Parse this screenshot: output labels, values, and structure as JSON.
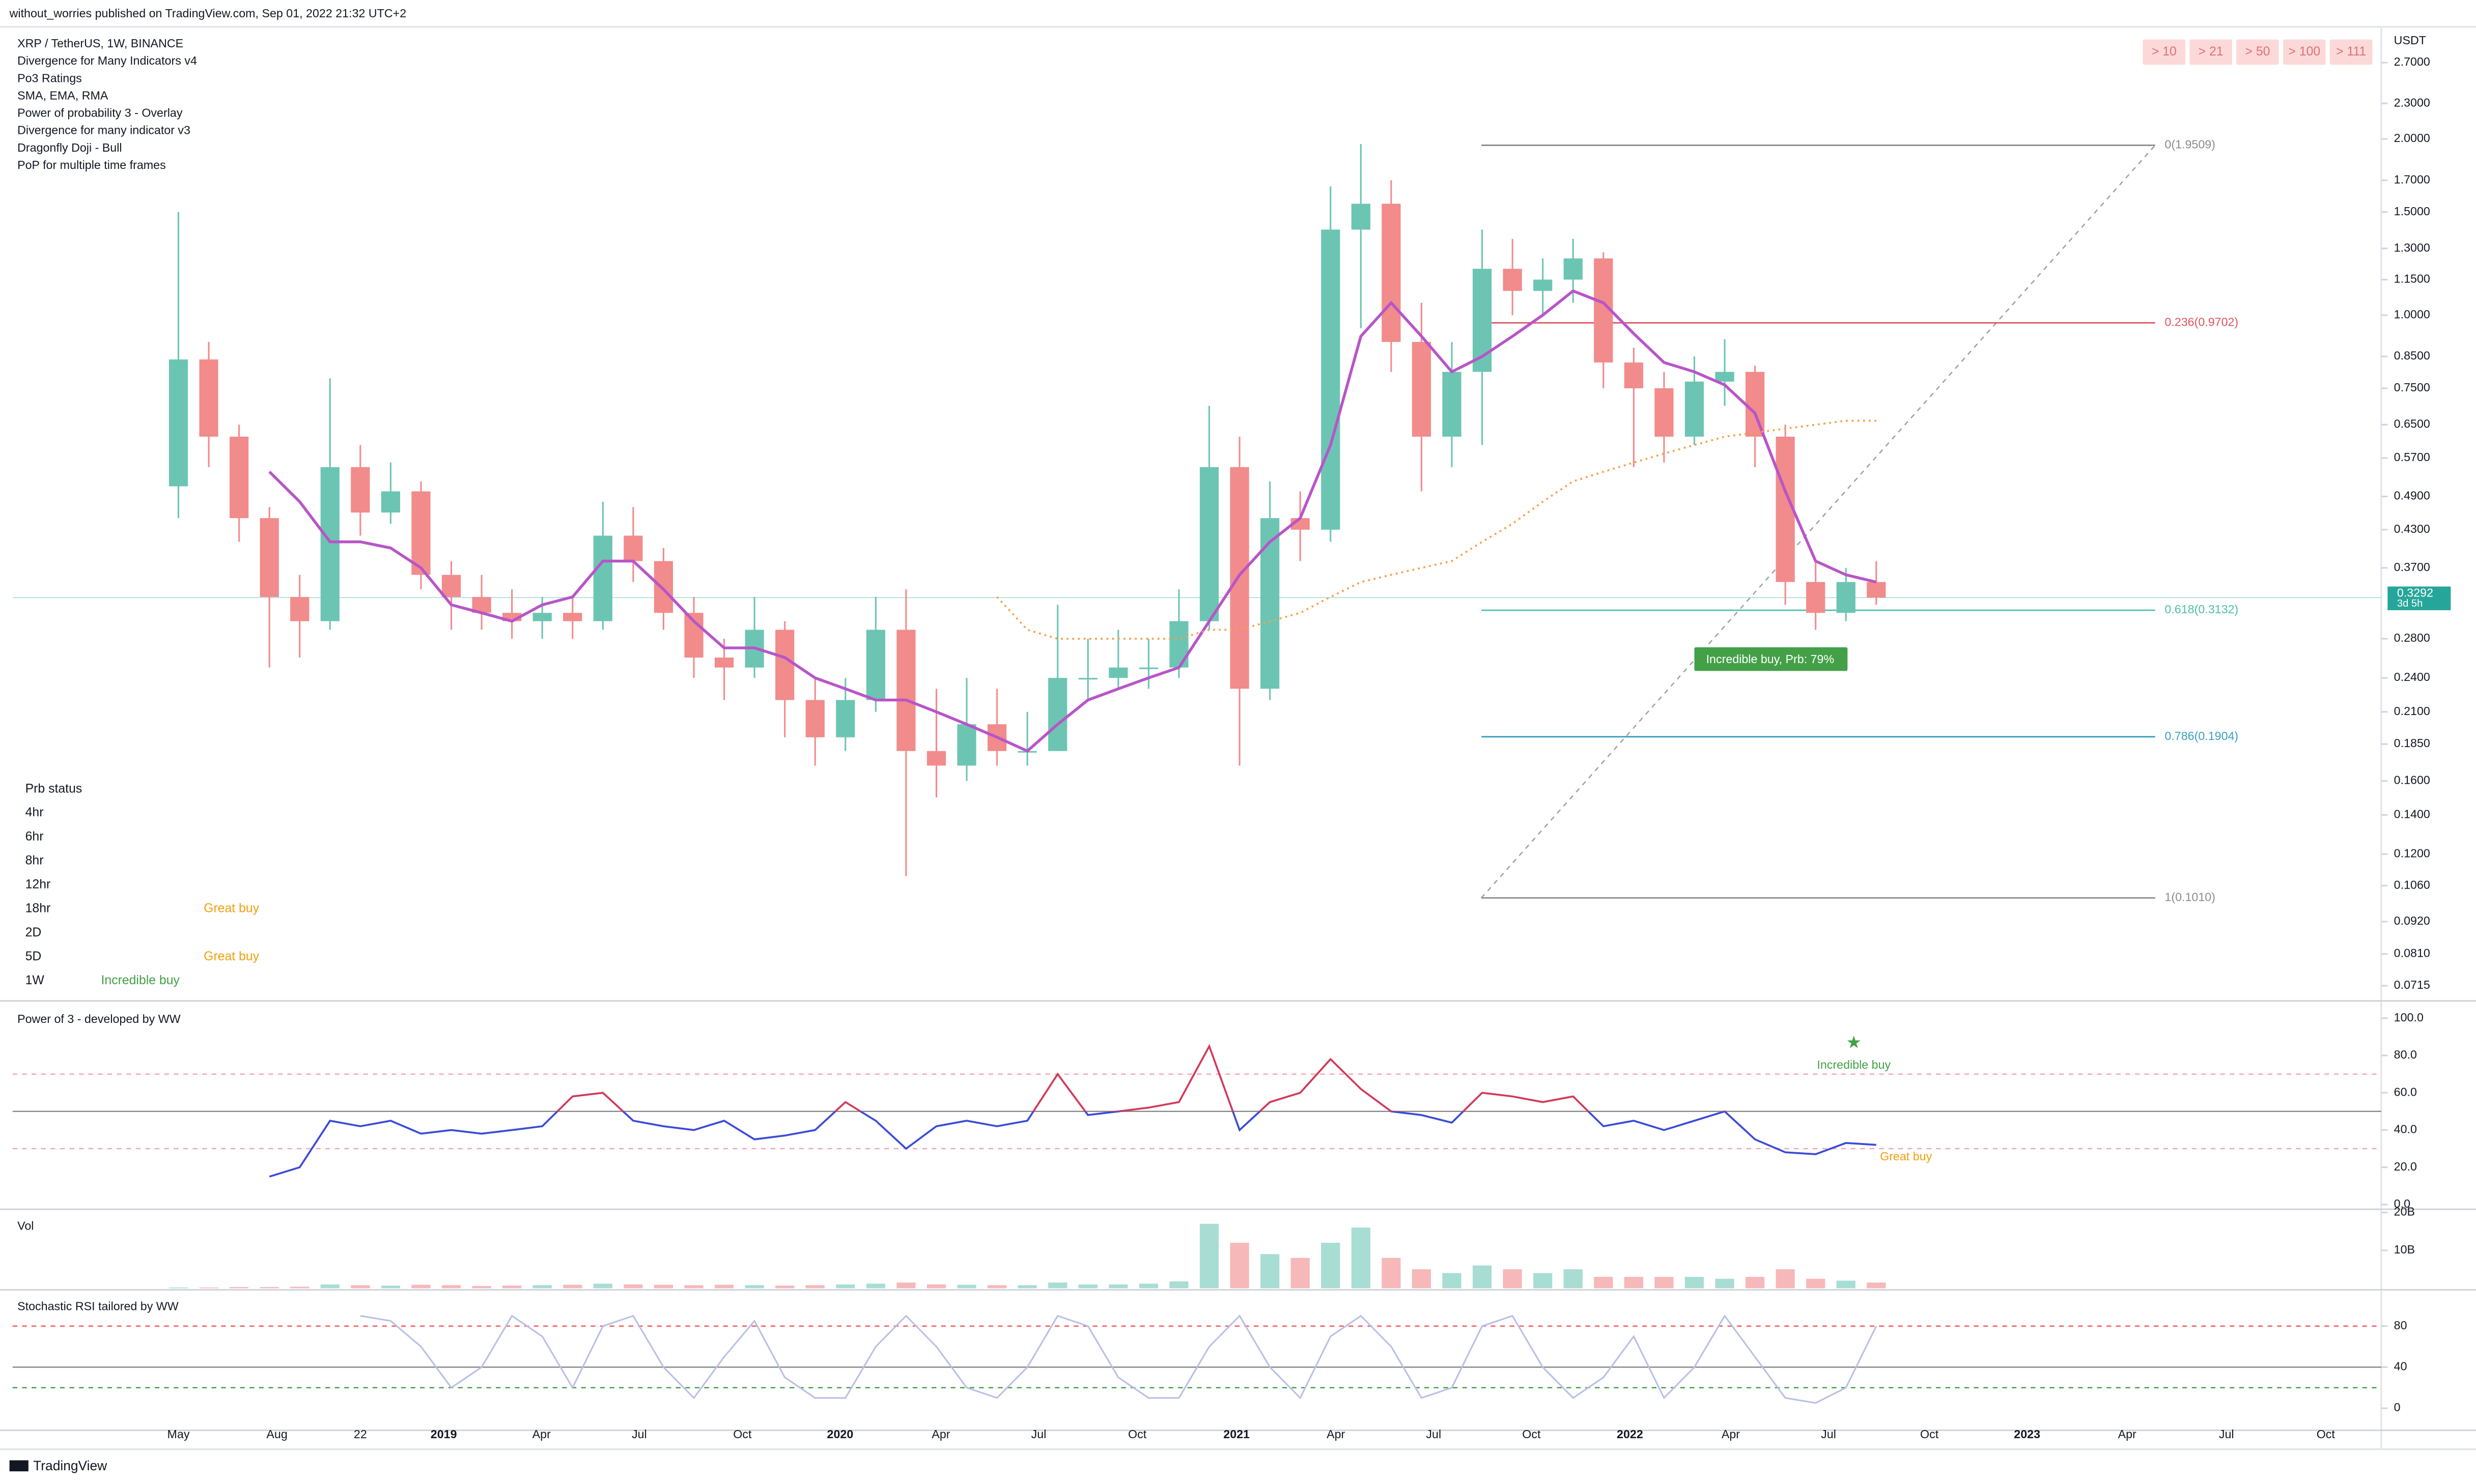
{
  "header": {
    "publisher": "without_worries published on TradingView.com, Sep 01, 2022 21:32 UTC+2",
    "indicators": [
      "XRP / TetherUS, 1W, BINANCE",
      "Divergence for Many Indicators v4",
      "Po3 Ratings",
      "SMA, EMA, RMA",
      "Power of probability 3 - Overlay",
      "Divergence for many indicator v3",
      "Dragonfly Doji - Bull",
      "PoP for multiple time frames"
    ],
    "timeframe_buttons": [
      "> 10",
      "> 21",
      "> 50",
      "> 100",
      "> 111"
    ],
    "currency": "USDT"
  },
  "prb_status": {
    "title": "Prb status",
    "rows": [
      {
        "tf": "4hr"
      },
      {
        "tf": "6hr"
      },
      {
        "tf": "8hr"
      },
      {
        "tf": "12hr"
      },
      {
        "tf": "18hr",
        "status": "Great buy"
      },
      {
        "tf": "2D"
      },
      {
        "tf": "5D",
        "status": "Great buy"
      },
      {
        "tf": "1W",
        "status": "Incredible buy"
      }
    ]
  },
  "footer": {
    "brand": "TradingView"
  },
  "chart_data": [
    {
      "type": "candlestick",
      "log_scale": true,
      "x": [
        0,
        4,
        8,
        12,
        16,
        20,
        24,
        28,
        32,
        36,
        40,
        44,
        48,
        52,
        56,
        60,
        64,
        68,
        72,
        76,
        80,
        84,
        88,
        92,
        96,
        100,
        104,
        108,
        112,
        116,
        120,
        124,
        128,
        132,
        136,
        140,
        144,
        148,
        152,
        156,
        160,
        164,
        168,
        172,
        176,
        180,
        184,
        188,
        192,
        196,
        200,
        204,
        208,
        212,
        216,
        220,
        224
      ],
      "xlim": [
        -21.875,
        290.625
      ],
      "xticks": [
        {
          "value": 0,
          "label": "May"
        },
        {
          "value": 13,
          "label": "Aug"
        },
        {
          "value": 24,
          "label": "22"
        },
        {
          "value": 35,
          "label": "2019"
        },
        {
          "value": 47.9,
          "label": "Apr"
        },
        {
          "value": 60.8,
          "label": "Jul"
        },
        {
          "value": 74.4,
          "label": "Oct"
        },
        {
          "value": 87.3,
          "label": "2020"
        },
        {
          "value": 100.6,
          "label": "Apr"
        },
        {
          "value": 113.5,
          "label": "Jul"
        },
        {
          "value": 126.5,
          "label": "Oct"
        },
        {
          "value": 139.6,
          "label": "2021"
        },
        {
          "value": 152.7,
          "label": "Apr"
        },
        {
          "value": 165.6,
          "label": "Jul"
        },
        {
          "value": 178.5,
          "label": "Oct"
        },
        {
          "value": 191.5,
          "label": "2022"
        },
        {
          "value": 204.8,
          "label": "Apr"
        },
        {
          "value": 217.7,
          "label": "Jul"
        },
        {
          "value": 231,
          "label": "Oct"
        },
        {
          "value": 243.9,
          "label": "2023"
        },
        {
          "value": 257.1,
          "label": "Apr"
        },
        {
          "value": 270.2,
          "label": "Jul"
        },
        {
          "value": 283.3,
          "label": "Oct"
        }
      ],
      "open": [
        0.51,
        0.84,
        0.62,
        0.45,
        0.33,
        0.3,
        0.55,
        0.46,
        0.5,
        0.36,
        0.33,
        0.31,
        0.3,
        0.31,
        0.3,
        0.42,
        0.38,
        0.31,
        0.26,
        0.25,
        0.29,
        0.22,
        0.19,
        0.22,
        0.29,
        0.18,
        0.17,
        0.2,
        0.18,
        0.18,
        0.24,
        0.24,
        0.25,
        0.25,
        0.3,
        0.55,
        0.23,
        0.45,
        0.43,
        1.4,
        1.55,
        0.9,
        0.62,
        0.8,
        1.2,
        1.1,
        1.15,
        1.25,
        0.83,
        0.75,
        0.62,
        0.77,
        0.8,
        0.62,
        0.35,
        0.31,
        0.35
      ],
      "high": [
        1.5,
        0.9,
        0.65,
        0.47,
        0.36,
        0.78,
        0.6,
        0.56,
        0.52,
        0.38,
        0.36,
        0.34,
        0.33,
        0.33,
        0.48,
        0.47,
        0.4,
        0.33,
        0.28,
        0.33,
        0.3,
        0.24,
        0.24,
        0.33,
        0.34,
        0.23,
        0.24,
        0.23,
        0.21,
        0.32,
        0.28,
        0.29,
        0.28,
        0.34,
        0.7,
        0.62,
        0.52,
        0.5,
        1.66,
        1.96,
        1.7,
        1.05,
        0.9,
        1.4,
        1.35,
        1.25,
        1.35,
        1.28,
        0.88,
        0.8,
        0.85,
        0.91,
        0.82,
        0.65,
        0.38,
        0.37,
        0.38
      ],
      "low": [
        0.45,
        0.55,
        0.41,
        0.25,
        0.26,
        0.29,
        0.42,
        0.44,
        0.34,
        0.29,
        0.29,
        0.28,
        0.28,
        0.28,
        0.29,
        0.35,
        0.29,
        0.24,
        0.22,
        0.24,
        0.19,
        0.17,
        0.18,
        0.21,
        0.11,
        0.15,
        0.16,
        0.17,
        0.17,
        0.18,
        0.22,
        0.23,
        0.23,
        0.24,
        0.29,
        0.17,
        0.22,
        0.38,
        0.41,
        0.95,
        0.8,
        0.5,
        0.55,
        0.6,
        1.0,
        1.0,
        1.05,
        0.75,
        0.55,
        0.56,
        0.6,
        0.7,
        0.55,
        0.32,
        0.29,
        0.3,
        0.32
      ],
      "close": [
        0.84,
        0.62,
        0.45,
        0.33,
        0.3,
        0.55,
        0.46,
        0.5,
        0.36,
        0.33,
        0.31,
        0.3,
        0.31,
        0.3,
        0.42,
        0.38,
        0.31,
        0.26,
        0.25,
        0.29,
        0.22,
        0.19,
        0.22,
        0.29,
        0.18,
        0.17,
        0.2,
        0.18,
        0.18,
        0.24,
        0.24,
        0.25,
        0.25,
        0.3,
        0.55,
        0.23,
        0.45,
        0.43,
        1.4,
        1.55,
        0.9,
        0.62,
        0.8,
        1.2,
        1.1,
        1.15,
        1.25,
        0.83,
        0.75,
        0.62,
        0.77,
        0.8,
        0.62,
        0.35,
        0.31,
        0.35,
        0.3292
      ],
      "up_color": "#6cc5b3",
      "down_color": "#f28b8b",
      "series": [
        {
          "color": "#b855c8",
          "values": [
            null,
            null,
            null,
            0.54,
            0.48,
            0.41,
            0.41,
            0.4,
            0.37,
            0.32,
            0.31,
            0.3,
            0.32,
            0.33,
            0.38,
            0.38,
            0.34,
            0.3,
            0.27,
            0.27,
            0.26,
            0.24,
            0.23,
            0.22,
            0.22,
            0.21,
            0.2,
            0.19,
            0.18,
            0.2,
            0.22,
            0.23,
            0.24,
            0.25,
            0.3,
            0.36,
            0.41,
            0.45,
            0.6,
            0.92,
            1.05,
            0.92,
            0.8,
            0.85,
            0.92,
            1.0,
            1.1,
            1.05,
            0.93,
            0.83,
            0.8,
            0.76,
            0.68,
            0.5,
            0.38,
            0.36,
            0.35
          ]
        },
        {
          "color": "#f5a04a",
          "dotted": true,
          "values": [
            null,
            null,
            null,
            null,
            null,
            null,
            null,
            null,
            null,
            null,
            null,
            null,
            null,
            null,
            null,
            null,
            null,
            null,
            null,
            null,
            null,
            null,
            null,
            null,
            null,
            null,
            null,
            0.33,
            0.29,
            0.28,
            0.28,
            0.28,
            0.28,
            0.28,
            0.29,
            0.29,
            0.3,
            0.31,
            0.33,
            0.35,
            0.36,
            0.37,
            0.38,
            0.41,
            0.44,
            0.48,
            0.52,
            0.54,
            0.56,
            0.58,
            0.6,
            0.62,
            0.63,
            0.64,
            0.65,
            0.66,
            0.66
          ]
        }
      ],
      "ylim": [
        0.0682,
        3.089
      ],
      "yticks": [
        {
          "value": 2.7,
          "label": "2.7000"
        },
        {
          "value": 2.3,
          "label": "2.3000"
        },
        {
          "value": 2.0,
          "label": "2.0000"
        },
        {
          "value": 1.7,
          "label": "1.7000"
        },
        {
          "value": 1.5,
          "label": "1.5000"
        },
        {
          "value": 1.3,
          "label": "1.3000"
        },
        {
          "value": 1.15,
          "label": "1.1500"
        },
        {
          "value": 1.0,
          "label": "1.0000"
        },
        {
          "value": 0.85,
          "label": "0.8500"
        },
        {
          "value": 0.75,
          "label": "0.7500"
        },
        {
          "value": 0.65,
          "label": "0.6500"
        },
        {
          "value": 0.57,
          "label": "0.5700"
        },
        {
          "value": 0.49,
          "label": "0.4900"
        },
        {
          "value": 0.43,
          "label": "0.4300"
        },
        {
          "value": 0.37,
          "label": "0.3700"
        },
        {
          "value": 0.28,
          "label": "0.2800"
        },
        {
          "value": 0.24,
          "label": "0.2400"
        },
        {
          "value": 0.21,
          "label": "0.2100"
        },
        {
          "value": 0.185,
          "label": "0.1850"
        },
        {
          "value": 0.16,
          "label": "0.1600"
        },
        {
          "value": 0.14,
          "label": "0.1400"
        },
        {
          "value": 0.12,
          "label": "0.1200"
        },
        {
          "value": 0.106,
          "label": "0.1060"
        },
        {
          "value": 0.092,
          "label": "0.0920"
        },
        {
          "value": 0.081,
          "label": "0.0810"
        },
        {
          "value": 0.0715,
          "label": "0.0715"
        }
      ],
      "last_price": {
        "value": 0.3292,
        "label": "0.3292",
        "countdown": "3d 5h",
        "color": "#26a69a"
      },
      "fib": {
        "x": [
          171.9,
          260.8
        ],
        "levels": [
          {
            "value": 1.9509,
            "label": "0(1.9509)",
            "color": "#8c8c8c"
          },
          {
            "value": 0.9702,
            "label": "0.236(0.9702)",
            "color": "#e0535f"
          },
          {
            "value": 0.3132,
            "label": "0.618(0.3132)",
            "color": "#4cc0a8"
          },
          {
            "value": 0.1904,
            "label": "0.786(0.1904)",
            "color": "#3aa0c0"
          },
          {
            "value": 0.101,
            "label": "1(0.1010)",
            "color": "#8c8c8c"
          }
        ]
      },
      "signal": "Incredible buy, Prb: 79%"
    },
    {
      "type": "line",
      "title": "Power of 3 - developed by WW",
      "values": [
        null,
        null,
        null,
        15,
        20,
        45,
        42,
        45,
        38,
        40,
        38,
        40,
        42,
        58,
        60,
        45,
        42,
        40,
        45,
        35,
        37,
        40,
        55,
        45,
        30,
        42,
        45,
        42,
        45,
        70,
        48,
        50,
        52,
        55,
        85,
        40,
        55,
        60,
        78,
        62,
        50,
        48,
        44,
        60,
        58,
        55,
        58,
        42,
        45,
        40,
        45,
        50,
        35,
        28,
        27,
        33,
        32
      ],
      "colors": {
        "above": "#d23a5a",
        "below": "#3b4bd8"
      },
      "split": 50,
      "ylim": [
        -1.7,
        107.6
      ],
      "yticks": [
        {
          "value": 100,
          "label": "100.0"
        },
        {
          "value": 80,
          "label": "80.0"
        },
        {
          "value": 60,
          "label": "60.0"
        },
        {
          "value": 40,
          "label": "40.0"
        },
        {
          "value": 20,
          "label": "20.0"
        },
        {
          "value": 0,
          "label": "0.0"
        }
      ],
      "hlines": [
        {
          "value": 70,
          "color": "#f4a6b4",
          "dashed": true
        },
        {
          "value": 50,
          "color": "#888888"
        },
        {
          "value": 30,
          "color": "#f4a6b4",
          "dashed": true
        }
      ],
      "annotations": [
        "Incredible buy",
        "Great buy"
      ]
    },
    {
      "type": "bar",
      "title": "Vol",
      "values": [
        0.2,
        0.2,
        0.3,
        0.3,
        0.4,
        1.0,
        0.8,
        0.7,
        0.9,
        0.8,
        0.6,
        0.7,
        0.8,
        0.9,
        1.2,
        1.0,
        0.9,
        0.8,
        0.9,
        0.8,
        0.7,
        0.8,
        1.0,
        1.2,
        1.5,
        1.0,
        0.9,
        0.8,
        0.8,
        1.5,
        1.0,
        1.0,
        1.2,
        1.8,
        17,
        12,
        9,
        8,
        12,
        16,
        8,
        5,
        4,
        6,
        5,
        4,
        5,
        3,
        3,
        3,
        3,
        2.5,
        3,
        5,
        2.5,
        2,
        1.5
      ],
      "ylim": [
        0,
        20
      ],
      "yticks": [
        {
          "value": 20,
          "label": "20B"
        },
        {
          "value": 10,
          "label": "10B"
        }
      ]
    },
    {
      "type": "line",
      "title": "Stochastic RSI tailored by WW",
      "values": [
        null,
        null,
        null,
        null,
        null,
        null,
        90,
        85,
        60,
        20,
        40,
        90,
        70,
        20,
        80,
        90,
        40,
        10,
        50,
        85,
        30,
        10,
        10,
        60,
        90,
        60,
        20,
        10,
        40,
        90,
        80,
        30,
        10,
        10,
        60,
        90,
        40,
        10,
        70,
        90,
        60,
        10,
        20,
        80,
        90,
        40,
        10,
        30,
        70,
        10,
        40,
        90,
        50,
        10,
        5,
        20,
        80
      ],
      "color": "#b9bfe6",
      "ylim": [
        -20,
        113.8
      ],
      "yticks": [
        80,
        40,
        0
      ],
      "hlines": [
        {
          "value": 80,
          "color": "#ef5350",
          "dashed": true
        },
        {
          "value": 40,
          "color": "#888888"
        },
        {
          "value": 20,
          "color": "#43a047",
          "dashed": true
        }
      ]
    }
  ]
}
